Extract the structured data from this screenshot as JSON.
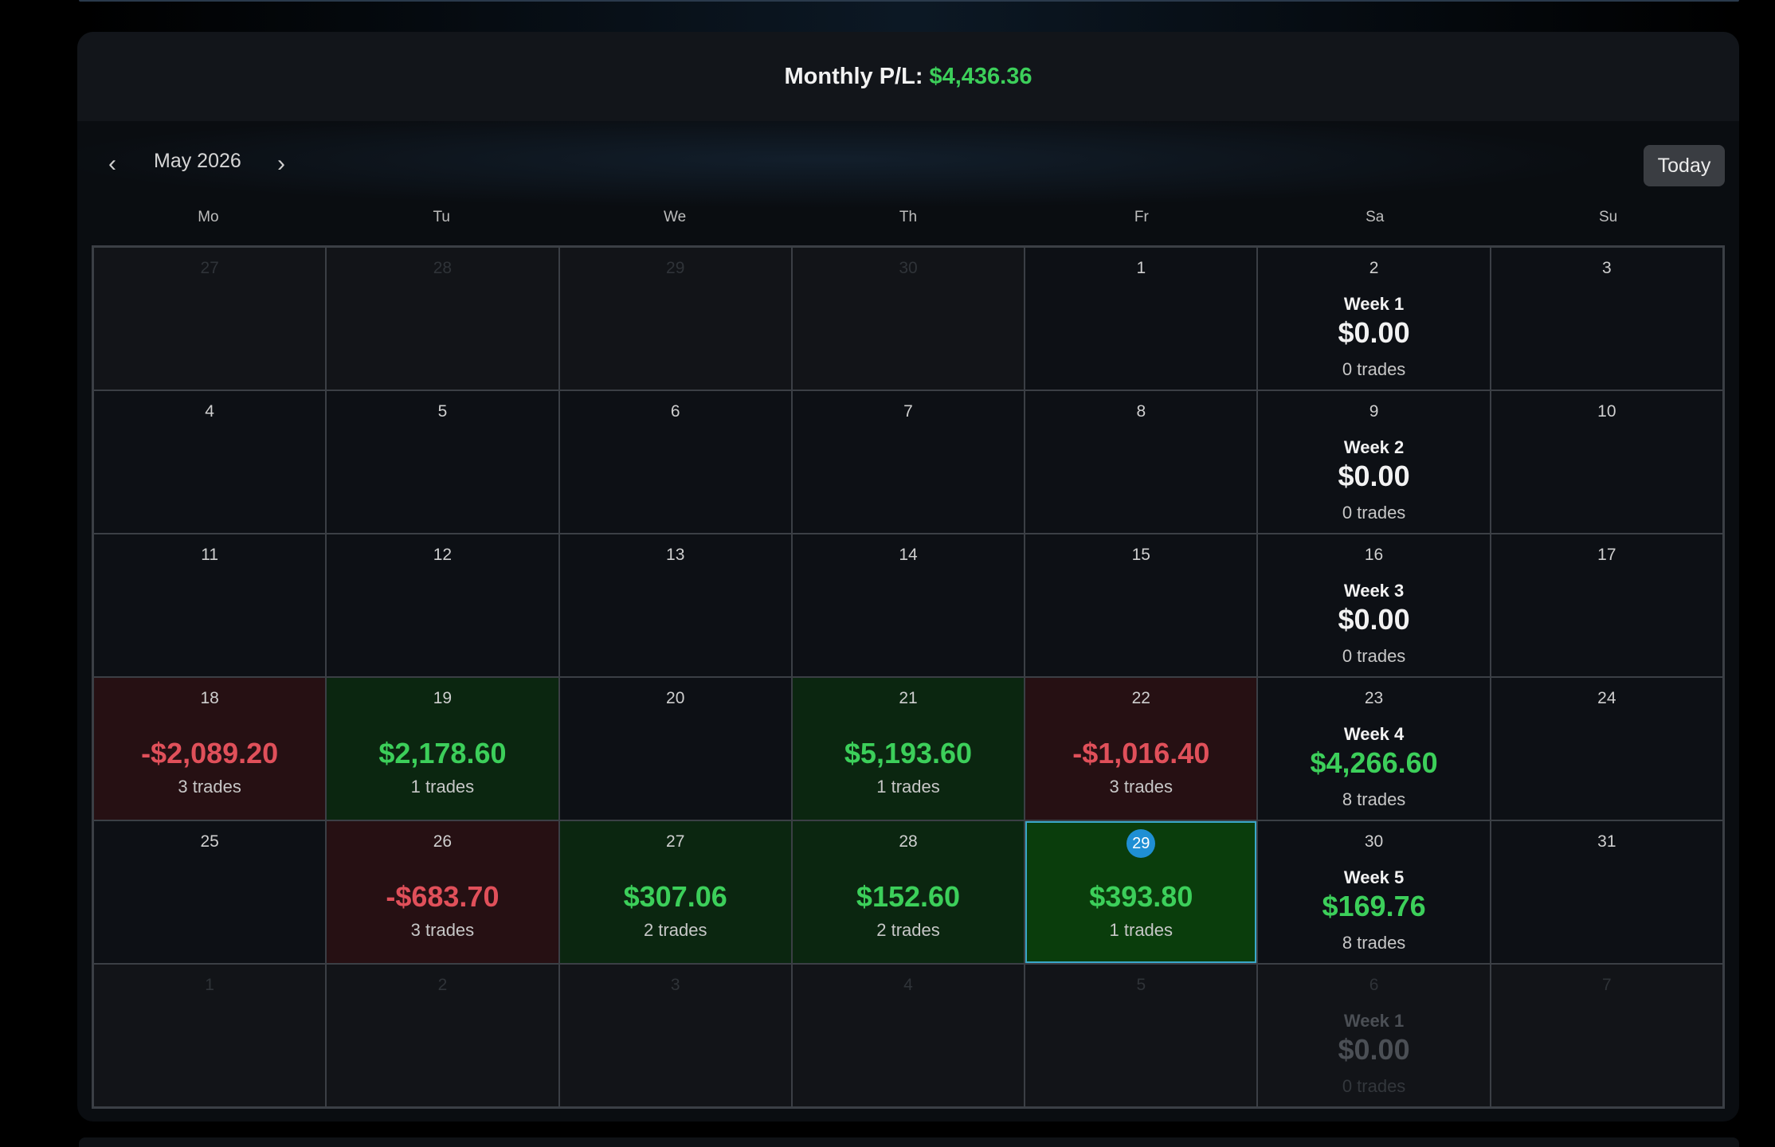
{
  "header": {
    "label": "Monthly P/L:",
    "value": "$4,436.36"
  },
  "nav": {
    "prev_icon": "‹",
    "next_icon": "›",
    "month": "May 2026",
    "today_label": "Today"
  },
  "weekdays": [
    "Mo",
    "Tu",
    "We",
    "Th",
    "Fr",
    "Sa",
    "Su"
  ],
  "colors": {
    "positive": "#3ccf5a",
    "negative": "#e0505a",
    "today_badge": "#1f8fd4",
    "selected_border": "#3aa7c9"
  },
  "weeks": [
    {
      "days": [
        {
          "day": "27",
          "out": true
        },
        {
          "day": "28",
          "out": true
        },
        {
          "day": "29",
          "out": true
        },
        {
          "day": "30",
          "out": true
        },
        {
          "day": "1"
        },
        {
          "day": "2",
          "summary": {
            "label": "Week 1",
            "pl": "$0.00",
            "trades": "0 trades",
            "tone": "zero"
          }
        },
        {
          "day": "3"
        }
      ]
    },
    {
      "days": [
        {
          "day": "4"
        },
        {
          "day": "5"
        },
        {
          "day": "6"
        },
        {
          "day": "7"
        },
        {
          "day": "8"
        },
        {
          "day": "9",
          "summary": {
            "label": "Week 2",
            "pl": "$0.00",
            "trades": "0 trades",
            "tone": "zero"
          }
        },
        {
          "day": "10"
        }
      ]
    },
    {
      "days": [
        {
          "day": "11"
        },
        {
          "day": "12"
        },
        {
          "day": "13"
        },
        {
          "day": "14"
        },
        {
          "day": "15"
        },
        {
          "day": "16",
          "summary": {
            "label": "Week 3",
            "pl": "$0.00",
            "trades": "0 trades",
            "tone": "zero"
          }
        },
        {
          "day": "17"
        }
      ]
    },
    {
      "days": [
        {
          "day": "18",
          "tone": "red",
          "pl": "-$2,089.20",
          "trades": "3 trades"
        },
        {
          "day": "19",
          "tone": "green",
          "pl": "$2,178.60",
          "trades": "1 trades"
        },
        {
          "day": "20"
        },
        {
          "day": "21",
          "tone": "green",
          "pl": "$5,193.60",
          "trades": "1 trades"
        },
        {
          "day": "22",
          "tone": "red",
          "pl": "-$1,016.40",
          "trades": "3 trades"
        },
        {
          "day": "23",
          "summary": {
            "label": "Week 4",
            "pl": "$4,266.60",
            "trades": "8 trades",
            "tone": "pos"
          }
        },
        {
          "day": "24"
        }
      ]
    },
    {
      "days": [
        {
          "day": "25"
        },
        {
          "day": "26",
          "tone": "red",
          "pl": "-$683.70",
          "trades": "3 trades"
        },
        {
          "day": "27",
          "tone": "green",
          "pl": "$307.06",
          "trades": "2 trades"
        },
        {
          "day": "28",
          "tone": "green",
          "pl": "$152.60",
          "trades": "2 trades"
        },
        {
          "day": "29",
          "tone": "green",
          "pl": "$393.80",
          "trades": "1 trades",
          "today": true,
          "selected": true
        },
        {
          "day": "30",
          "summary": {
            "label": "Week 5",
            "pl": "$169.76",
            "trades": "8 trades",
            "tone": "pos"
          }
        },
        {
          "day": "31"
        }
      ]
    },
    {
      "days": [
        {
          "day": "1",
          "out": true
        },
        {
          "day": "2",
          "out": true
        },
        {
          "day": "3",
          "out": true
        },
        {
          "day": "4",
          "out": true
        },
        {
          "day": "5",
          "out": true
        },
        {
          "day": "6",
          "out": true,
          "summary": {
            "label": "Week 1",
            "pl": "$0.00",
            "trades": "0 trades",
            "tone": "zero"
          }
        },
        {
          "day": "7",
          "out": true
        }
      ]
    }
  ]
}
